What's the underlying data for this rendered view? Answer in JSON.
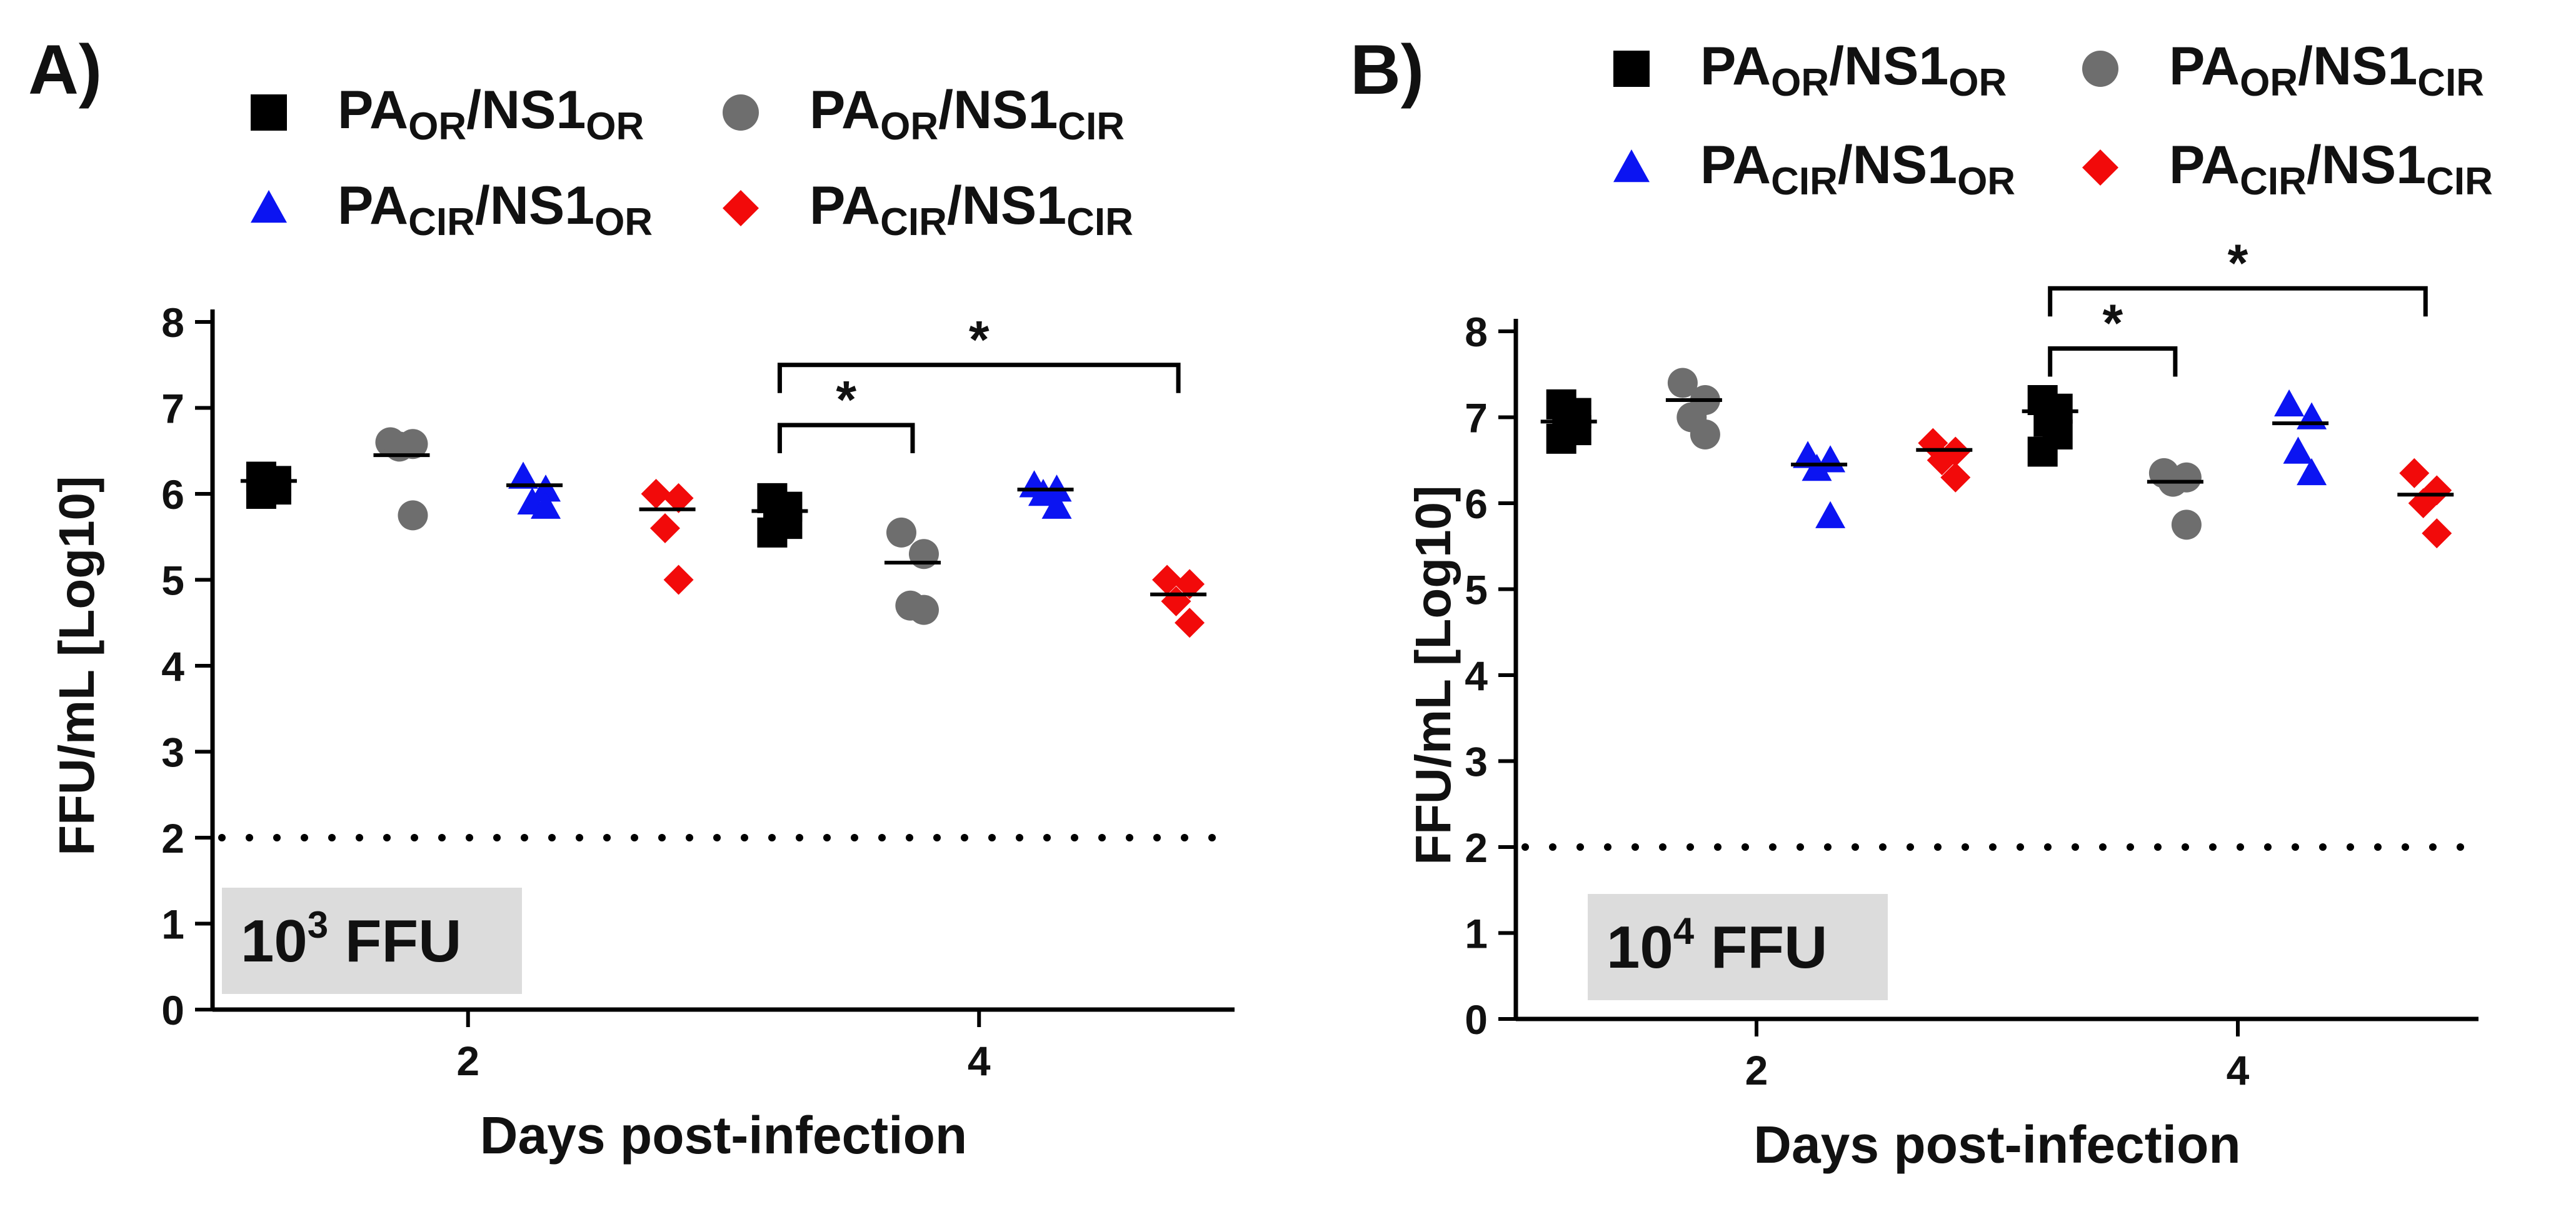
{
  "colors": {
    "PA_OR/NS1_OR": "#000000",
    "PA_OR/NS1_CIR": "#6e6e6e",
    "PA_CIR/NS1_OR": "#0b14f2",
    "PA_CIR/NS1_CIR": "#f20a0a",
    "dose_box": "#dcdcdc"
  },
  "legend": {
    "PA_OR/NS1_OR": {
      "p1": "PA",
      "s1": "OR",
      "p2": "/NS1",
      "s2": "OR",
      "marker": "square"
    },
    "PA_OR/NS1_CIR": {
      "p1": "PA",
      "s1": "OR",
      "p2": "/NS1",
      "s2": "CIR",
      "marker": "circle"
    },
    "PA_CIR/NS1_OR": {
      "p1": "PA",
      "s1": "CIR",
      "p2": "/NS1",
      "s2": "OR",
      "marker": "triangle"
    },
    "PA_CIR/NS1_CIR": {
      "p1": "PA",
      "s1": "CIR",
      "p2": "/NS1",
      "s2": "CIR",
      "marker": "diamond"
    }
  },
  "chart_data": [
    {
      "type": "scatter",
      "panel_label": "A)",
      "dose_label": {
        "base": "10",
        "exp": "3",
        "unit": " FFU"
      },
      "xlabel": "Days post-infection",
      "ylabel": "FFU/mL [Log10]",
      "ylim": [
        0,
        8
      ],
      "yticks": [
        "0",
        "1",
        "2",
        "3",
        "4",
        "5",
        "6",
        "7",
        "8"
      ],
      "categories": [
        "2",
        "4"
      ],
      "detection_limit": 2,
      "series": [
        {
          "name": "PA_OR/NS1_OR",
          "points": [
            {
              "day": "2",
              "values": [
                6.2,
                6.15,
                6.1,
                6.05,
                6.0
              ],
              "mean": 6.15
            },
            {
              "day": "4",
              "values": [
                5.95,
                5.85,
                5.75,
                5.65,
                5.55
              ],
              "mean": 5.8
            }
          ]
        },
        {
          "name": "PA_OR/NS1_CIR",
          "points": [
            {
              "day": "2",
              "values": [
                6.6,
                6.58,
                6.55,
                5.75
              ],
              "mean": 6.45
            },
            {
              "day": "4",
              "values": [
                5.55,
                5.3,
                4.7,
                4.65
              ],
              "mean": 5.2
            }
          ]
        },
        {
          "name": "PA_CIR/NS1_OR",
          "points": [
            {
              "day": "2",
              "values": [
                6.2,
                6.05,
                5.9,
                5.85
              ],
              "mean": 6.1
            },
            {
              "day": "4",
              "values": [
                6.1,
                6.05,
                6.0,
                5.85
              ],
              "mean": 6.05
            }
          ]
        },
        {
          "name": "PA_CIR/NS1_CIR",
          "points": [
            {
              "day": "2",
              "values": [
                6.0,
                5.95,
                5.6,
                5.0
              ],
              "mean": 5.82
            },
            {
              "day": "4",
              "values": [
                5.0,
                4.95,
                4.75,
                4.5
              ],
              "mean": 4.83
            }
          ]
        }
      ],
      "annotations": [
        {
          "from": "PA_OR/NS1_OR",
          "to": "PA_OR/NS1_CIR",
          "day": "4",
          "level": 6.8,
          "text": "*"
        },
        {
          "from": "PA_OR/NS1_OR",
          "to": "PA_CIR/NS1_CIR",
          "day": "4",
          "level": 7.5,
          "text": "*"
        }
      ]
    },
    {
      "type": "scatter",
      "panel_label": "B)",
      "dose_label": {
        "base": "10",
        "exp": "4",
        "unit": " FFU"
      },
      "xlabel": "Days post-infection",
      "ylabel": "FFU/mL [Log10]",
      "ylim": [
        0,
        8
      ],
      "yticks": [
        "0",
        "1",
        "2",
        "3",
        "4",
        "5",
        "6",
        "7",
        "8"
      ],
      "categories": [
        "2",
        "4"
      ],
      "detection_limit": 2,
      "series": [
        {
          "name": "PA_OR/NS1_OR",
          "points": [
            {
              "day": "2",
              "values": [
                7.15,
                7.05,
                6.95,
                6.85,
                6.75
              ],
              "mean": 6.95
            },
            {
              "day": "4",
              "values": [
                7.2,
                7.1,
                6.95,
                6.8,
                6.6
              ],
              "mean": 7.07
            }
          ]
        },
        {
          "name": "PA_OR/NS1_CIR",
          "points": [
            {
              "day": "2",
              "values": [
                7.4,
                7.2,
                7.0,
                6.8
              ],
              "mean": 7.2
            },
            {
              "day": "4",
              "values": [
                6.35,
                6.3,
                6.25,
                5.75
              ],
              "mean": 6.25
            }
          ]
        },
        {
          "name": "PA_CIR/NS1_OR",
          "points": [
            {
              "day": "2",
              "values": [
                6.55,
                6.5,
                6.4,
                5.85
              ],
              "mean": 6.45
            },
            {
              "day": "4",
              "values": [
                7.15,
                7.0,
                6.6,
                6.35
              ],
              "mean": 6.93
            }
          ]
        },
        {
          "name": "PA_CIR/NS1_CIR",
          "points": [
            {
              "day": "2",
              "values": [
                6.7,
                6.6,
                6.5,
                6.3
              ],
              "mean": 6.62
            },
            {
              "day": "4",
              "values": [
                6.35,
                6.15,
                6.0,
                5.65
              ],
              "mean": 6.1
            }
          ]
        }
      ],
      "annotations": [
        {
          "from": "PA_OR/NS1_OR",
          "to": "PA_OR/NS1_CIR",
          "day": "4",
          "level": 7.8,
          "text": "*"
        },
        {
          "from": "PA_OR/NS1_OR",
          "to": "PA_CIR/NS1_CIR",
          "day": "4",
          "level": 8.5,
          "text": "*"
        }
      ]
    }
  ]
}
